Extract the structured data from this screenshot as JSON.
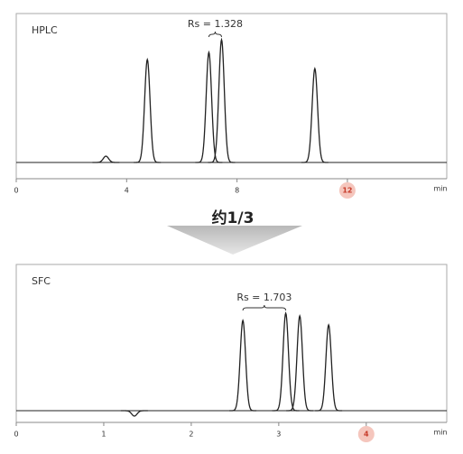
{
  "chart_data": [
    {
      "type": "chromatogram",
      "title": "HPLC",
      "xlabel": "min",
      "xlim": [
        0,
        15.6
      ],
      "xticks": [
        0,
        4,
        8,
        12
      ],
      "highlight_xtick": 12,
      "ylim": [
        -15,
        150
      ],
      "peaks": [
        {
          "time": 3.25,
          "height": 7
        },
        {
          "time": 4.75,
          "height": 114
        },
        {
          "time": 6.98,
          "height": 122
        },
        {
          "time": 7.44,
          "height": 136
        },
        {
          "time": 10.82,
          "height": 104
        }
      ],
      "resolution": {
        "label": "Rs = 1.328",
        "peaks": [
          2,
          3
        ]
      },
      "color": "#222222"
    },
    {
      "type": "chromatogram",
      "title": "SFC",
      "xlabel": "min",
      "xlim": [
        0,
        4.92
      ],
      "xticks": [
        0,
        1,
        2,
        3,
        4
      ],
      "highlight_xtick": 4,
      "ylim": [
        -10,
        130
      ],
      "peaks": [
        {
          "time": 1.35,
          "height": -6
        },
        {
          "time": 2.59,
          "height": 100
        },
        {
          "time": 3.08,
          "height": 108
        },
        {
          "time": 3.24,
          "height": 105
        },
        {
          "time": 3.57,
          "height": 95
        }
      ],
      "resolution": {
        "label": "Rs = 1.703",
        "peaks": [
          1,
          2
        ]
      },
      "color": "#222222"
    }
  ],
  "reduction_label": "约1/3"
}
